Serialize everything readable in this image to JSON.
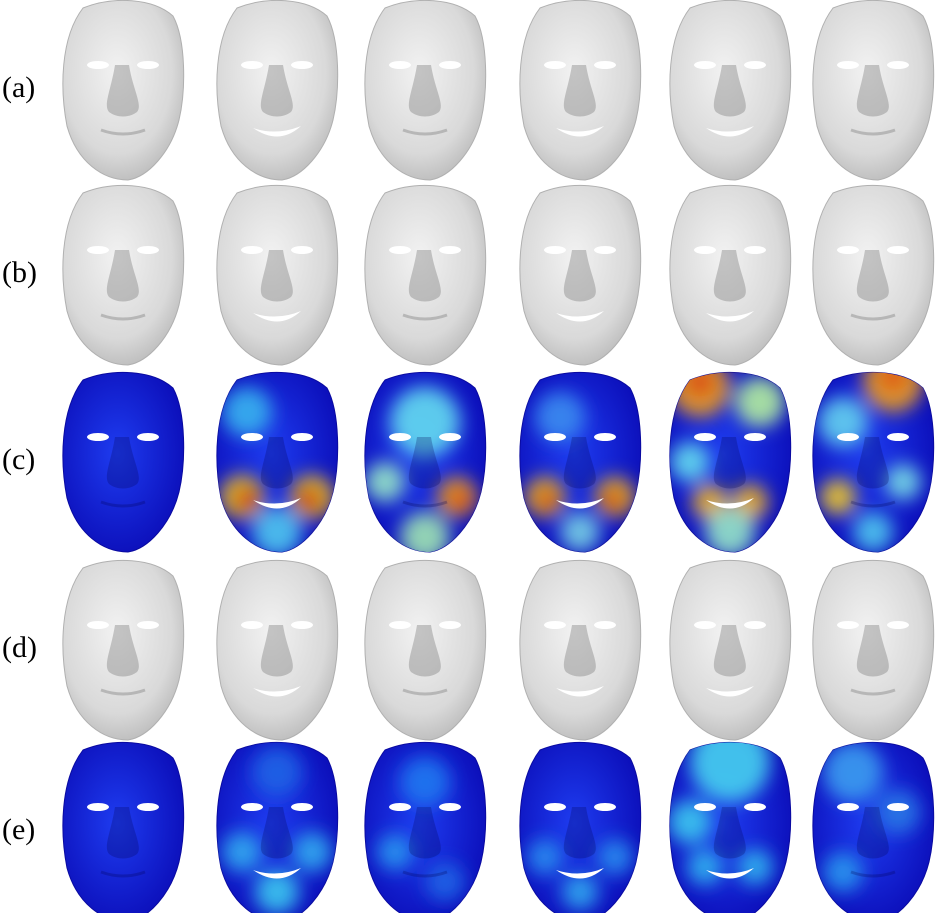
{
  "row_labels": [
    "(a)",
    "(b)",
    "(c)",
    "(d)",
    "(e)"
  ]
}
